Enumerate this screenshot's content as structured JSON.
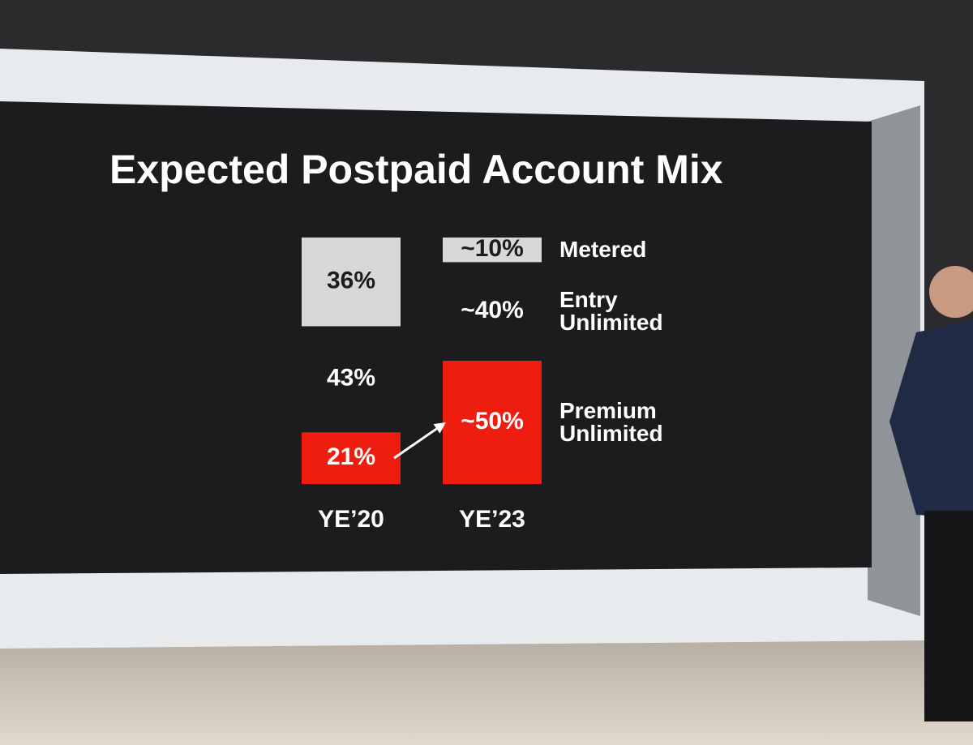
{
  "chart_data": {
    "type": "bar",
    "stacked": true,
    "title": "Expected Postpaid Account Mix",
    "categories": [
      "YE’20",
      "YE’23"
    ],
    "series": [
      {
        "name": "Premium Unlimited",
        "color": "#ee1d0f",
        "values": [
          21,
          50
        ],
        "value_labels": [
          "21%",
          "~50%"
        ]
      },
      {
        "name": "Entry Unlimited",
        "color": "#1c1c1f",
        "values": [
          43,
          40
        ],
        "value_labels": [
          "43%",
          "~40%"
        ]
      },
      {
        "name": "Metered",
        "color": "#d8d8d8",
        "values": [
          36,
          10
        ],
        "value_labels": [
          "36%",
          "~10%"
        ]
      }
    ]
  }
}
